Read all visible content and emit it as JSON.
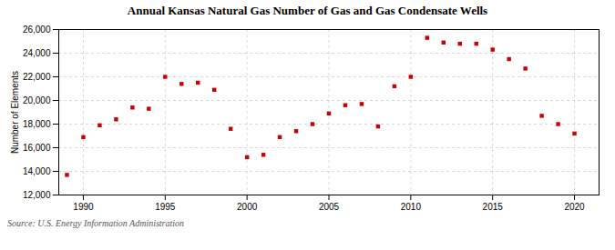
{
  "chart_data": {
    "type": "scatter",
    "title": "Annual Kansas Natural Gas Number of Gas and Gas Condensate Wells",
    "ylabel": "Number of Elements",
    "annotations": [
      "Source: U.S. Energy Information Administration"
    ],
    "x": [
      1989,
      1990,
      1991,
      1992,
      1993,
      1994,
      1995,
      1996,
      1997,
      1998,
      1999,
      2000,
      2001,
      2002,
      2003,
      2004,
      2005,
      2006,
      2007,
      2008,
      2009,
      2010,
      2011,
      2012,
      2013,
      2014,
      2015,
      2016,
      2017,
      2018,
      2019,
      2020
    ],
    "values": [
      13700,
      16900,
      17900,
      18400,
      19400,
      19300,
      22000,
      21400,
      21500,
      20900,
      17600,
      15200,
      15400,
      16900,
      17400,
      18000,
      18900,
      19600,
      19700,
      17800,
      21200,
      22000,
      25300,
      24900,
      24800,
      24800,
      24300,
      23500,
      22700,
      18700,
      18000,
      17200
    ],
    "color": "#cc0000",
    "marker": "square",
    "xlim": [
      1988.5,
      2021.5
    ],
    "ylim": [
      12000,
      26000
    ],
    "xticks": [
      1990,
      1995,
      2000,
      2005,
      2010,
      2015,
      2020
    ],
    "yticks": [
      {
        "value": 12000,
        "label": "12,000"
      },
      {
        "value": 14000,
        "label": "14,000"
      },
      {
        "value": 16000,
        "label": "16,000"
      },
      {
        "value": 18000,
        "label": "18,000"
      },
      {
        "value": 20000,
        "label": "20,000"
      },
      {
        "value": 22000,
        "label": "22,000"
      },
      {
        "value": 24000,
        "label": "24,000"
      },
      {
        "value": 26000,
        "label": "26,000"
      }
    ],
    "grid": true
  }
}
